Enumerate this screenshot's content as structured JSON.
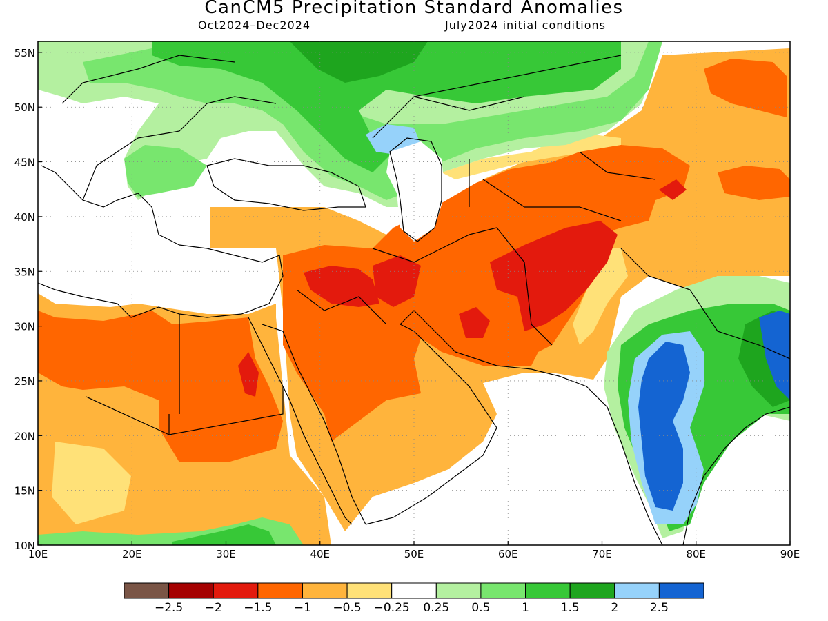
{
  "title": "CanCM5 Precipitation Standard Anomalies",
  "subtitle_left": "Oct2024–Dec2024",
  "subtitle_right": "July2024 initial conditions",
  "map": {
    "lon_range": [
      10,
      90
    ],
    "lat_range": [
      10,
      56
    ],
    "lon_ticks": [
      "10E",
      "20E",
      "30E",
      "40E",
      "50E",
      "60E",
      "70E",
      "80E",
      "90E"
    ],
    "lat_ticks": [
      "10N",
      "15N",
      "20N",
      "25N",
      "30N",
      "35N",
      "40N",
      "45N",
      "50N",
      "55N"
    ],
    "grid_lines": "dotted"
  },
  "colorbar": {
    "colors": [
      "#7a5546",
      "#a50000",
      "#e31a0d",
      "#ff6600",
      "#ffb43c",
      "#ffe178",
      "#ffffff",
      "#b4f0a0",
      "#78e66e",
      "#37c837",
      "#1ea51e",
      "#96d2fa",
      "#1464d2"
    ],
    "labels": [
      "−2.5",
      "−2",
      "−1.5",
      "−1",
      "−0.5",
      "−0.25",
      "0.25",
      "0.5",
      "1",
      "1.5",
      "2",
      "2.5"
    ]
  },
  "colors": {
    "dry_strong": "#e31a0d",
    "dry": "#ff6600",
    "dry_weak": "#ffb43c",
    "dry_light": "#ffe178",
    "wet_light": "#b4f0a0",
    "wet": "#78e66e",
    "wet_moderate": "#37c837",
    "wet_strong": "#1ea51e",
    "very_wet": "#96d2fa",
    "extreme_wet": "#1464d2"
  }
}
